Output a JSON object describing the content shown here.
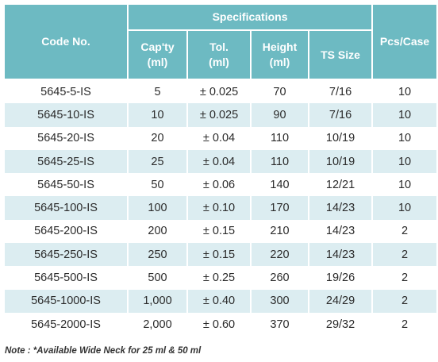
{
  "table": {
    "headers": {
      "code": "Code No.",
      "specifications": "Specifications",
      "capacity": "Cap'ty\n(ml)",
      "tolerance": "Tol.\n(ml)",
      "height": "Height\n(ml)",
      "ts_size": "TS Size",
      "pcs_case": "Pcs/Case"
    },
    "rows": [
      [
        "5645-5-IS",
        "5",
        "± 0.025",
        "70",
        "7/16",
        "10"
      ],
      [
        "5645-10-IS",
        "10",
        "± 0.025",
        "90",
        "7/16",
        "10"
      ],
      [
        "5645-20-IS",
        "20",
        "± 0.04",
        "110",
        "10/19",
        "10"
      ],
      [
        "5645-25-IS",
        "25",
        "± 0.04",
        "110",
        "10/19",
        "10"
      ],
      [
        "5645-50-IS",
        "50",
        "± 0.06",
        "140",
        "12/21",
        "10"
      ],
      [
        "5645-100-IS",
        "100",
        "± 0.10",
        "170",
        "14/23",
        "10"
      ],
      [
        "5645-200-IS",
        "200",
        "± 0.15",
        "210",
        "14/23",
        "2"
      ],
      [
        "5645-250-IS",
        "250",
        "± 0.15",
        "220",
        "14/23",
        "2"
      ],
      [
        "5645-500-IS",
        "500",
        "± 0.25",
        "260",
        "19/26",
        "2"
      ],
      [
        "5645-1000-IS",
        "1,000",
        "± 0.40",
        "300",
        "24/29",
        "2"
      ],
      [
        "5645-2000-IS",
        "2,000",
        "± 0.60",
        "370",
        "29/32",
        "2"
      ]
    ]
  },
  "note": "Note : *Available Wide Neck for 25 ml & 50 ml",
  "colors": {
    "header_bg": "#6dbac2",
    "header_text": "#ffffff",
    "stripe_bg": "#dcedf1",
    "row_bg": "#ffffff"
  }
}
